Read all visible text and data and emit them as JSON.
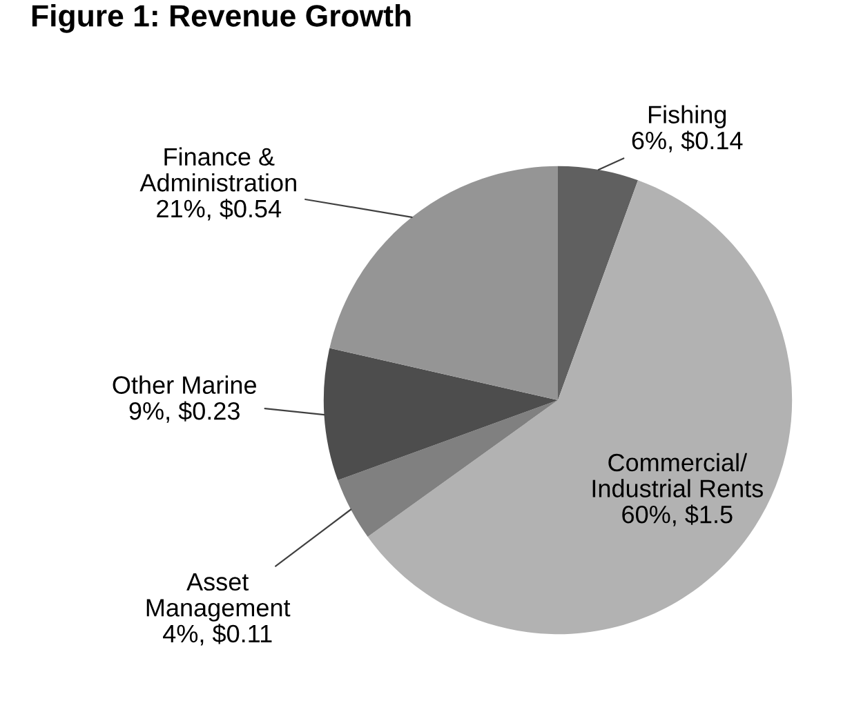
{
  "chart_data": {
    "type": "pie",
    "title": "Figure 1: Revenue Growth",
    "categories": [
      "Fishing",
      "Commercial/\nIndustrial Rents",
      "Asset\nManagement",
      "Other Marine",
      "Finance &\nAdministration"
    ],
    "values": [
      0.14,
      1.5,
      0.11,
      0.23,
      0.54
    ],
    "value_labels": [
      "6%, $0.14",
      "60%, $1.5",
      "4%, $0.11",
      "9%, $0.23",
      "21%, $0.54"
    ],
    "colors": [
      "#606060",
      "#b2b2b2",
      "#808080",
      "#4d4d4d",
      "#959595"
    ],
    "legend": false
  }
}
